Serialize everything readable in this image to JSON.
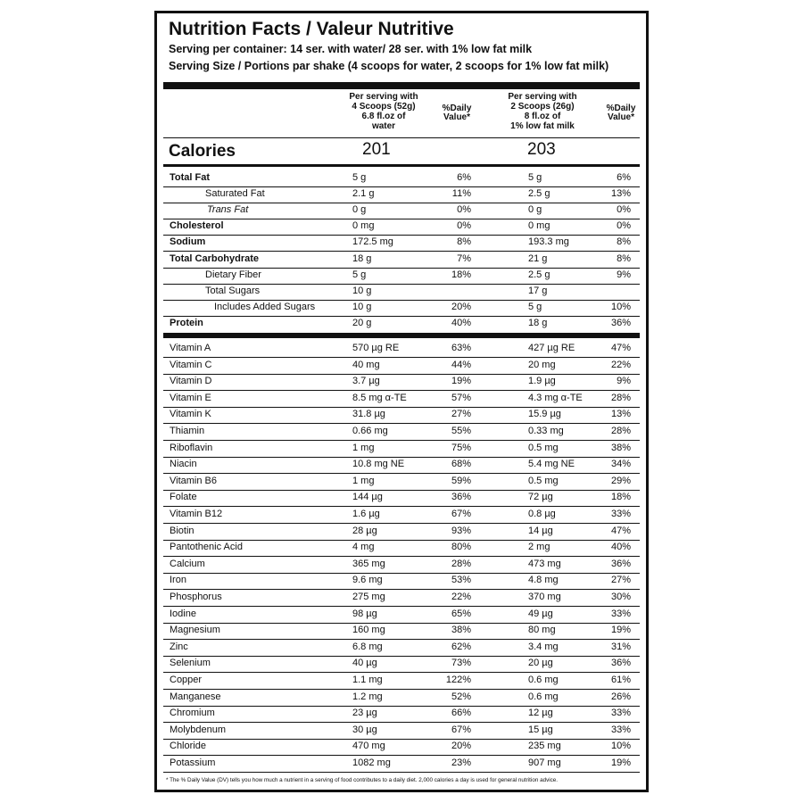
{
  "label": {
    "title": "Nutrition Facts / Valeur Nutritive",
    "serving_lines": [
      "Serving per container: 14 ser. with water/ 28 ser. with 1% low fat milk",
      "Serving Size / Portions par shake (4 scoops for water, 2 scoops for 1% low fat milk)"
    ],
    "headers": [
      [
        "Per serving with",
        "4 Scoops (52g)",
        "6.8 fl.oz of",
        "water"
      ],
      [
        "%Daily",
        "Value*"
      ],
      [
        "Per serving with",
        "2 Scoops (26g)",
        "8 fl.oz of",
        "1% low fat milk"
      ],
      [
        "%Daily",
        "Value*"
      ]
    ],
    "calories": [
      "Calories",
      "201",
      "203"
    ],
    "macro_rows": [
      {
        "style": "bold",
        "cells": [
          "Total Fat",
          "5 g",
          "6%",
          "5 g",
          "6%"
        ]
      },
      {
        "style": "indent",
        "cells": [
          "Saturated Fat",
          "2.1 g",
          "11%",
          "2.5 g",
          "13%"
        ]
      },
      {
        "style": "italic",
        "cells": [
          "Trans Fat",
          "0 g",
          "0%",
          "0 g",
          "0%"
        ]
      },
      {
        "style": "bold",
        "cells": [
          "Cholesterol",
          "0 mg",
          "0%",
          "0 mg",
          "0%"
        ]
      },
      {
        "style": "bold",
        "cells": [
          "Sodium",
          "172.5 mg",
          "8%",
          "193.3 mg",
          "8%"
        ]
      },
      {
        "style": "bold",
        "cells": [
          "Total Carbohydrate",
          "18 g",
          "7%",
          "21 g",
          "8%"
        ]
      },
      {
        "style": "indent",
        "cells": [
          "Dietary Fiber",
          "5 g",
          "18%",
          "2.5 g",
          "9%"
        ]
      },
      {
        "style": "indent",
        "cells": [
          "Total Sugars",
          "10 g",
          null,
          "17 g",
          null
        ]
      },
      {
        "style": "indent2",
        "cells": [
          "Includes Added Sugars",
          "10 g",
          "20%",
          "5 g",
          "10%"
        ]
      },
      {
        "style": "bold",
        "cells": [
          "Protein",
          "20 g",
          "40%",
          "18 g",
          "36%"
        ]
      }
    ],
    "micro_rows": [
      [
        "Vitamin A",
        "570 µg RE",
        "63%",
        "427 µg RE",
        "47%"
      ],
      [
        "Vitamin C",
        "40 mg",
        "44%",
        "20 mg",
        "22%"
      ],
      [
        "Vitamin D",
        "3.7 µg",
        "19%",
        "1.9 µg",
        "9%"
      ],
      [
        "Vitamin E",
        "8.5 mg α-TE",
        "57%",
        "4.3 mg α-TE",
        "28%"
      ],
      [
        "Vitamin K",
        "31.8 µg",
        "27%",
        "15.9 µg",
        "13%"
      ],
      [
        "Thiamin",
        "0.66 mg",
        "55%",
        "0.33 mg",
        "28%"
      ],
      [
        "Riboflavin",
        "1 mg",
        "75%",
        "0.5 mg",
        "38%"
      ],
      [
        "Niacin",
        "10.8 mg NE",
        "68%",
        "5.4 mg NE",
        "34%"
      ],
      [
        "Vitamin B6",
        "1 mg",
        "59%",
        "0.5 mg",
        "29%"
      ],
      [
        "Folate",
        "144 µg",
        "36%",
        "72 µg",
        "18%"
      ],
      [
        "Vitamin B12",
        "1.6 µg",
        "67%",
        "0.8 µg",
        "33%"
      ],
      [
        "Biotin",
        "28 µg",
        "93%",
        "14 µg",
        "47%"
      ],
      [
        "Pantothenic Acid",
        "4 mg",
        "80%",
        "2 mg",
        "40%"
      ],
      [
        "Calcium",
        "365 mg",
        "28%",
        "473 mg",
        "36%"
      ],
      [
        "Iron",
        "9.6 mg",
        "53%",
        "4.8 mg",
        "27%"
      ],
      [
        "Phosphorus",
        "275 mg",
        "22%",
        "370 mg",
        "30%"
      ],
      [
        "Iodine",
        "98 µg",
        "65%",
        "49 µg",
        "33%"
      ],
      [
        "Magnesium",
        "160 mg",
        "38%",
        "80 mg",
        "19%"
      ],
      [
        "Zinc",
        "6.8 mg",
        "62%",
        "3.4 mg",
        "31%"
      ],
      [
        "Selenium",
        "40 µg",
        "73%",
        "20 µg",
        "36%"
      ],
      [
        "Copper",
        "1.1 mg",
        "122%",
        "0.6 mg",
        "61%"
      ],
      [
        "Manganese",
        "1.2 mg",
        "52%",
        "0.6 mg",
        "26%"
      ],
      [
        "Chromium",
        "23 µg",
        "66%",
        "12 µg",
        "33%"
      ],
      [
        "Molybdenum",
        "30 µg",
        "67%",
        "15 µg",
        "33%"
      ],
      [
        "Chloride",
        "470 mg",
        "20%",
        "235 mg",
        "10%"
      ],
      [
        "Potassium",
        "1082 mg",
        "23%",
        "907 mg",
        "19%"
      ]
    ],
    "footnote": "* The % Daily Value (DV) tells you how much a nutrient in a serving of food contributes to a daily diet. 2,000 calories a day is used for general nutrition advice."
  }
}
